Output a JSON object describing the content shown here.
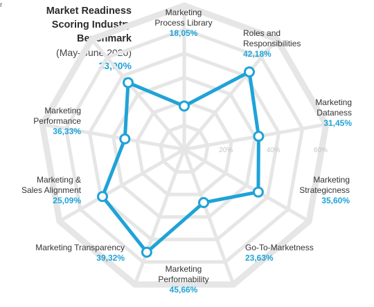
{
  "corner_mark": "r",
  "header": {
    "title_lines": [
      "Market Readiness",
      "Scoring Industry",
      "Benchmark"
    ],
    "subtitle": "(May–June 2020)",
    "value": "33,00%"
  },
  "colors": {
    "series": "#1fa3d7",
    "grid": "#e6e6e6",
    "label": "#333333",
    "value": "#1fa3d7",
    "tick": "#c4c4c4"
  },
  "chart_data": {
    "type": "radar",
    "title": "Market Readiness Scoring Industry Benchmark",
    "subtitle": "(May–June 2020)",
    "overall_value": 33.0,
    "rlim": [
      0,
      60
    ],
    "ticks": [
      20,
      40,
      60
    ],
    "tick_labels": [
      "20%",
      "40%",
      "60%"
    ],
    "grid": true,
    "categories": [
      "Marketing Process Library",
      "Roles and Responsibilities",
      "Marketing Dataness",
      "Marketing Strategicness",
      "Go-To-Marketness",
      "Marketing Performability",
      "Marketing Transparency",
      "Marketing & Sales Alignment",
      "Marketing Performance"
    ],
    "series": [
      {
        "values": [
          18.05,
          42.18,
          31.45,
          35.6,
          23.63,
          45.66,
          39.32,
          25.09,
          36.33
        ]
      }
    ],
    "labels": [
      {
        "lines": [
          "Marketing",
          "Process Library"
        ],
        "value": "18,05%"
      },
      {
        "lines": [
          "Roles and",
          "Responsibilities"
        ],
        "value": "42,18%"
      },
      {
        "lines": [
          "Marketing",
          "Dataness"
        ],
        "value": "31,45%"
      },
      {
        "lines": [
          "Marketing",
          "Strategicness"
        ],
        "value": "35,60%"
      },
      {
        "lines": [
          "Go-To-Marketness"
        ],
        "value": "23,63%"
      },
      {
        "lines": [
          "Marketing",
          "Performability"
        ],
        "value": "45,66%"
      },
      {
        "lines": [
          "Marketing Transparency"
        ],
        "value": "39,32%"
      },
      {
        "lines": [
          "Marketing &",
          "Sales Alignment"
        ],
        "value": "25,09%"
      },
      {
        "lines": [
          "Marketing",
          "Performance"
        ],
        "value": "36,33%"
      }
    ]
  }
}
